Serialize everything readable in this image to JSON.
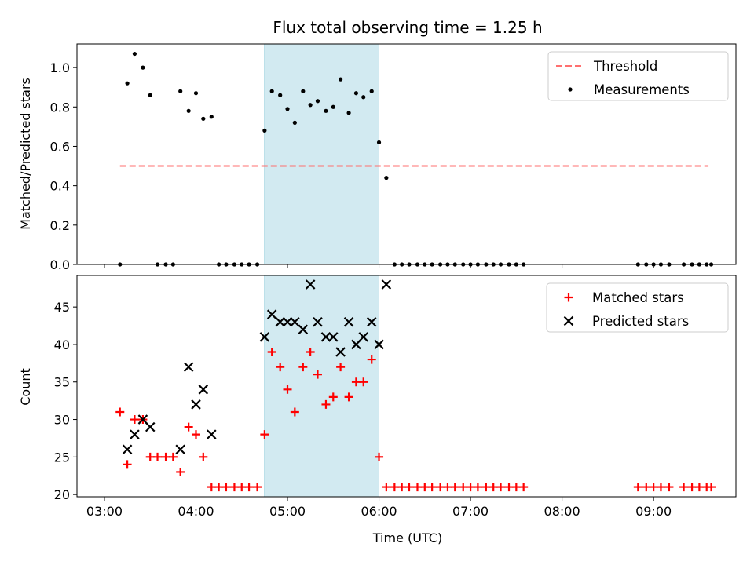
{
  "chart_data": {
    "title": "Flux total observing time = 1.25 h",
    "xlabel": "Time (UTC)",
    "x_ticks": [
      "03:00",
      "04:00",
      "05:00",
      "06:00",
      "07:00",
      "08:00",
      "09:00"
    ],
    "x_tick_hours": [
      3,
      4,
      5,
      6,
      7,
      8,
      9
    ],
    "xlim_hours": [
      2.7,
      9.9
    ],
    "highlight_span_hours": [
      4.75,
      6.0
    ],
    "colors": {
      "threshold": "#ff7070",
      "measurements": "#000000",
      "matched": "#ff0000",
      "predicted": "#000000",
      "highlight": "#add8e6"
    },
    "panels": [
      {
        "type": "scatter",
        "ylabel": "Matched/Predicted stars",
        "ylim": [
          0,
          1.12
        ],
        "yticks": [
          0.0,
          0.2,
          0.4,
          0.6,
          0.8,
          1.0
        ],
        "ytick_labels": [
          "0.0",
          "0.2",
          "0.4",
          "0.6",
          "0.8",
          "1.0"
        ],
        "legend_position": "top-right",
        "legend": [
          {
            "label": "Threshold",
            "kind": "dashed-line"
          },
          {
            "label": "Measurements",
            "kind": "dot"
          }
        ],
        "threshold": {
          "value": 0.5,
          "x_range_hours": [
            3.17,
            9.6
          ]
        },
        "series": [
          {
            "name": "Measurements",
            "marker": "dot",
            "x_hours": [
              3.17,
              3.25,
              3.33,
              3.42,
              3.5,
              3.58,
              3.67,
              3.75,
              3.83,
              3.92,
              4.0,
              4.08,
              4.17,
              4.25,
              4.33,
              4.42,
              4.5,
              4.58,
              4.67,
              4.75,
              4.83,
              4.92,
              5.0,
              5.08,
              5.17,
              5.25,
              5.33,
              5.42,
              5.5,
              5.58,
              5.67,
              5.75,
              5.83,
              5.92,
              6.0,
              6.08,
              6.17,
              6.25,
              6.33,
              6.42,
              6.5,
              6.58,
              6.67,
              6.75,
              6.83,
              6.92,
              7.0,
              7.08,
              7.17,
              7.25,
              7.33,
              7.42,
              7.5,
              7.58,
              8.83,
              8.92,
              9.0,
              9.08,
              9.17,
              9.33,
              9.42,
              9.5,
              9.58,
              9.63
            ],
            "y": [
              0.0,
              0.92,
              1.07,
              1.0,
              0.86,
              0.0,
              0.0,
              0.0,
              0.88,
              0.78,
              0.87,
              0.74,
              0.75,
              0.0,
              0.0,
              0.0,
              0.0,
              0.0,
              0.0,
              0.68,
              0.88,
              0.86,
              0.79,
              0.72,
              0.88,
              0.81,
              0.83,
              0.78,
              0.8,
              0.94,
              0.77,
              0.87,
              0.85,
              0.88,
              0.62,
              0.44,
              0.0,
              0.0,
              0.0,
              0.0,
              0.0,
              0.0,
              0.0,
              0.0,
              0.0,
              0.0,
              0.0,
              0.0,
              0.0,
              0.0,
              0.0,
              0.0,
              0.0,
              0.0,
              0.0,
              0.0,
              0.0,
              0.0,
              0.0,
              0.0,
              0.0,
              0.0,
              0.0,
              0.0
            ]
          }
        ]
      },
      {
        "type": "scatter",
        "ylabel": "Count",
        "ylim": [
          19.7,
          49.2
        ],
        "yticks": [
          20,
          25,
          30,
          35,
          40,
          45
        ],
        "ytick_labels": [
          "20",
          "25",
          "30",
          "35",
          "40",
          "45"
        ],
        "legend_position": "top-right",
        "legend": [
          {
            "label": "Matched stars",
            "kind": "plus"
          },
          {
            "label": "Predicted stars",
            "kind": "cross"
          }
        ],
        "series": [
          {
            "name": "Matched stars",
            "marker": "plus",
            "x_hours": [
              3.17,
              3.25,
              3.33,
              3.42,
              3.5,
              3.58,
              3.67,
              3.75,
              3.83,
              3.92,
              4.0,
              4.08,
              4.17,
              4.25,
              4.33,
              4.42,
              4.5,
              4.58,
              4.67,
              4.75,
              4.83,
              4.92,
              5.0,
              5.08,
              5.17,
              5.25,
              5.33,
              5.42,
              5.5,
              5.58,
              5.67,
              5.75,
              5.83,
              5.92,
              6.0,
              6.08,
              6.17,
              6.25,
              6.33,
              6.42,
              6.5,
              6.58,
              6.67,
              6.75,
              6.83,
              6.92,
              7.0,
              7.08,
              7.17,
              7.25,
              7.33,
              7.42,
              7.5,
              7.58,
              8.83,
              8.92,
              9.0,
              9.08,
              9.17,
              9.33,
              9.42,
              9.5,
              9.58,
              9.63
            ],
            "y": [
              31,
              24,
              30,
              30,
              25,
              25,
              25,
              25,
              23,
              29,
              28,
              25,
              21,
              21,
              21,
              21,
              21,
              21,
              21,
              28,
              39,
              37,
              34,
              31,
              37,
              39,
              36,
              32,
              33,
              37,
              33,
              35,
              35,
              38,
              25,
              21,
              21,
              21,
              21,
              21,
              21,
              21,
              21,
              21,
              21,
              21,
              21,
              21,
              21,
              21,
              21,
              21,
              21,
              21,
              21,
              21,
              21,
              21,
              21,
              21,
              21,
              21,
              21,
              21
            ]
          },
          {
            "name": "Predicted stars",
            "marker": "cross",
            "x_hours": [
              3.25,
              3.33,
              3.42,
              3.5,
              3.83,
              3.92,
              4.0,
              4.08,
              4.17,
              4.75,
              4.83,
              4.92,
              5.0,
              5.08,
              5.17,
              5.25,
              5.33,
              5.42,
              5.5,
              5.58,
              5.67,
              5.75,
              5.83,
              5.92,
              6.0,
              6.08
            ],
            "y": [
              26,
              28,
              30,
              29,
              26,
              37,
              32,
              34,
              28,
              41,
              44,
              43,
              43,
              43,
              42,
              48,
              43,
              41,
              41,
              39,
              43,
              40,
              41,
              43,
              40,
              48
            ]
          }
        ]
      }
    ]
  }
}
